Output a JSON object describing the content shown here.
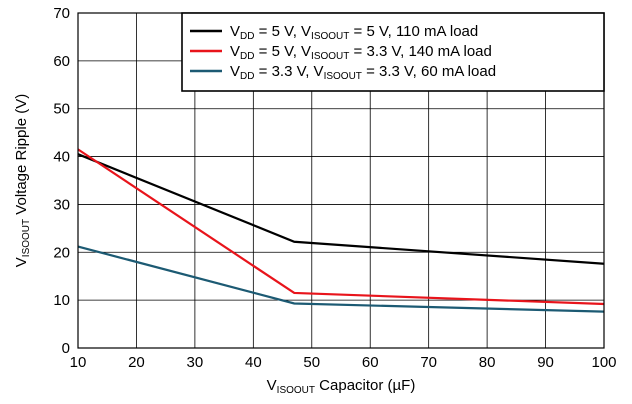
{
  "chart_data": {
    "type": "line",
    "title": "",
    "xlabel": {
      "main": "V",
      "sub": "ISOOUT",
      "rest": " Capacitor (µF)"
    },
    "ylabel": {
      "main": "V",
      "sub": "ISOOUT",
      "rest": " Voltage Ripple (V)"
    },
    "xlim": [
      10,
      100
    ],
    "ylim": [
      0,
      70
    ],
    "xticks": [
      "10",
      "20",
      "30",
      "40",
      "50",
      "60",
      "70",
      "80",
      "90",
      "100"
    ],
    "yticks": [
      "0",
      "10",
      "20",
      "30",
      "40",
      "50",
      "60",
      "70"
    ],
    "grid": true,
    "legend_position": "top-right",
    "series": [
      {
        "name": "VDD = 5 V, VISOOUT = 5 V, 110 mA load",
        "label_parts": [
          [
            "V",
            ""
          ],
          [
            "DD",
            "sub"
          ],
          [
            " = 5 V, V",
            ""
          ],
          [
            "ISOOUT",
            "sub"
          ],
          [
            " = 5 V, 110 mA load",
            ""
          ]
        ],
        "color": "#000000",
        "x": [
          10,
          47,
          100
        ],
        "y": [
          40.5,
          22.2,
          17.6
        ]
      },
      {
        "name": "VDD = 5 V, VISOOUT = 3.3 V, 140 mA load",
        "label_parts": [
          [
            "V",
            ""
          ],
          [
            "DD",
            "sub"
          ],
          [
            " = 5 V, V",
            ""
          ],
          [
            "ISOOUT",
            "sub"
          ],
          [
            " = 3.3 V, 140 mA load",
            ""
          ]
        ],
        "color": "#e8141b",
        "x": [
          10,
          47,
          100
        ],
        "y": [
          41.5,
          11.5,
          9.2
        ]
      },
      {
        "name": "VDD = 3.3 V, VISOOUT = 3.3 V, 60 mA load",
        "label_parts": [
          [
            "V",
            ""
          ],
          [
            "DD",
            "sub"
          ],
          [
            " = 3.3 V, V",
            ""
          ],
          [
            "ISOOUT",
            "sub"
          ],
          [
            " = 3.3 V, 60 mA load",
            ""
          ]
        ],
        "color": "#1c5a73",
        "x": [
          10,
          47,
          100
        ],
        "y": [
          21.2,
          9.3,
          7.6
        ]
      }
    ]
  }
}
